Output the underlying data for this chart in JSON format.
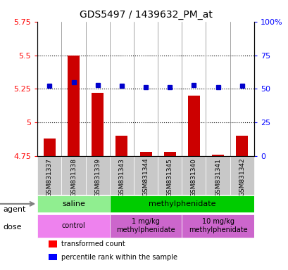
{
  "title": "GDS5497 / 1439632_PM_at",
  "samples": [
    "GSM831337",
    "GSM831338",
    "GSM831339",
    "GSM831343",
    "GSM831344",
    "GSM831345",
    "GSM831340",
    "GSM831341",
    "GSM831342"
  ],
  "red_values": [
    4.88,
    5.5,
    5.22,
    4.9,
    4.78,
    4.78,
    5.2,
    4.76,
    4.9
  ],
  "blue_values": [
    52,
    55,
    53,
    52,
    51,
    51,
    53,
    51,
    52
  ],
  "ylim_left": [
    4.75,
    5.75
  ],
  "ylim_right": [
    0,
    100
  ],
  "yticks_left": [
    4.75,
    5.0,
    5.25,
    5.5,
    5.75
  ],
  "yticks_right": [
    0,
    25,
    50,
    75,
    100
  ],
  "ytick_labels_left": [
    "4.75",
    "5",
    "5.25",
    "5.5",
    "5.75"
  ],
  "ytick_labels_right": [
    "0",
    "25",
    "50",
    "75",
    "100%"
  ],
  "hlines": [
    5.0,
    5.25,
    5.5
  ],
  "agent_groups": [
    {
      "label": "saline",
      "start": 0,
      "end": 3,
      "color": "#90EE90"
    },
    {
      "label": "methylphenidate",
      "start": 3,
      "end": 9,
      "color": "#00CC00"
    }
  ],
  "dose_groups": [
    {
      "label": "control",
      "start": 0,
      "end": 3,
      "color": "#EE82EE"
    },
    {
      "label": "1 mg/kg\nmethylphenidate",
      "start": 3,
      "end": 6,
      "color": "#CC66CC"
    },
    {
      "label": "10 mg/kg\nmethylphenidate",
      "start": 6,
      "end": 9,
      "color": "#CC66CC"
    }
  ],
  "legend_items": [
    {
      "color": "red",
      "label": "transformed count"
    },
    {
      "color": "blue",
      "label": "percentile rank within the sample"
    }
  ],
  "bar_color": "#CC0000",
  "dot_color": "#0000CC",
  "background_color": "#FFFFFF",
  "ticklabel_color_left": "red",
  "ticklabel_color_right": "blue",
  "grid_color": "#000000",
  "bar_width": 0.5,
  "xticklabel_bg": "#C8C8C8"
}
